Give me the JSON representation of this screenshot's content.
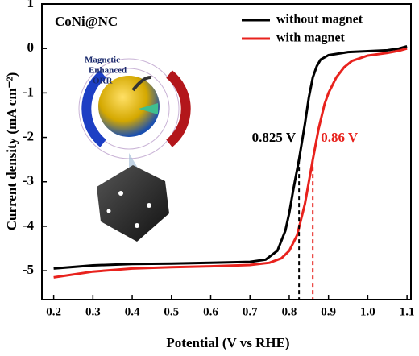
{
  "chart_data": {
    "type": "line",
    "sample_label": "CoNi@NC",
    "x_label": "Potential (V vs RHE)",
    "y_label": "Current density (mA cm⁻²)",
    "xlim": [
      0.17,
      1.11
    ],
    "ylim": [
      -5.65,
      1
    ],
    "xticks": [
      0.2,
      0.3,
      0.4,
      0.5,
      0.6,
      0.7,
      0.8,
      0.9,
      {
        "value": 1,
        "label": "1.0"
      },
      1.1
    ],
    "yticks": [
      1,
      0,
      -1,
      -2,
      -3,
      -4,
      -5
    ],
    "legend": "top-right",
    "series": [
      {
        "name": "without magnet",
        "color": "#000000",
        "x": [
          0.2,
          0.3,
          0.4,
          0.5,
          0.6,
          0.7,
          0.74,
          0.77,
          0.79,
          0.8,
          0.81,
          0.825,
          0.84,
          0.85,
          0.86,
          0.87,
          0.88,
          0.9,
          0.95,
          1.0,
          1.05,
          1.08,
          1.1
        ],
        "values": [
          -4.95,
          -4.88,
          -4.85,
          -4.84,
          -4.82,
          -4.8,
          -4.75,
          -4.55,
          -4.1,
          -3.7,
          -3.2,
          -2.5,
          -1.7,
          -1.1,
          -0.65,
          -0.4,
          -0.25,
          -0.15,
          -0.08,
          -0.06,
          -0.04,
          0.0,
          0.05
        ]
      },
      {
        "name": "with magnet",
        "color": "#e8221d",
        "x": [
          0.2,
          0.3,
          0.4,
          0.5,
          0.6,
          0.7,
          0.75,
          0.78,
          0.8,
          0.82,
          0.84,
          0.86,
          0.875,
          0.89,
          0.9,
          0.92,
          0.94,
          0.96,
          1.0,
          1.05,
          1.08,
          1.1
        ],
        "values": [
          -5.15,
          -5.02,
          -4.95,
          -4.92,
          -4.9,
          -4.87,
          -4.82,
          -4.72,
          -4.55,
          -4.2,
          -3.5,
          -2.5,
          -1.8,
          -1.25,
          -1.0,
          -0.65,
          -0.42,
          -0.28,
          -0.16,
          -0.1,
          -0.05,
          0.0
        ]
      }
    ],
    "markers": [
      {
        "x": 0.825,
        "y": -2.5,
        "label": "0.825 V",
        "color": "#000000"
      },
      {
        "x": 0.86,
        "y": -2.5,
        "label": "0.86 V",
        "color": "#e8221d"
      }
    ],
    "inset_labels": [
      "Magnetic",
      "Enhanced",
      "ORR"
    ]
  }
}
